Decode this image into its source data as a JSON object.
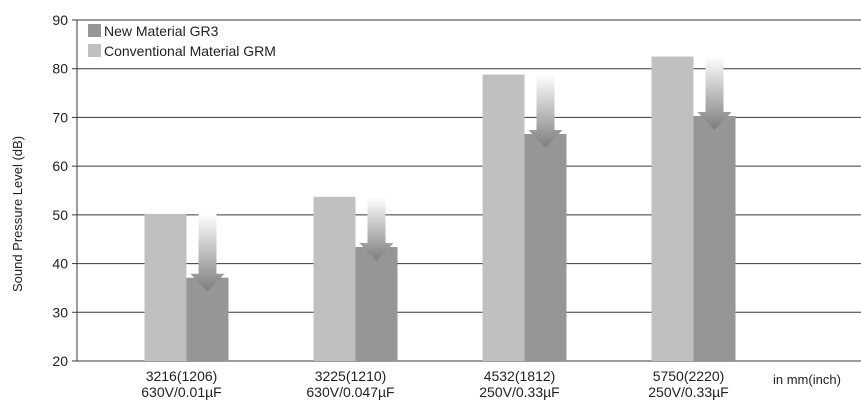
{
  "chart_data": {
    "type": "bar",
    "categories": [
      [
        "3216(1206)",
        "630V/0.01µF"
      ],
      [
        "3225(1210)",
        "630V/0.047µF"
      ],
      [
        "4532(1812)",
        "250V/0.33µF"
      ],
      [
        "5750(2220)",
        "250V/0.33µF"
      ]
    ],
    "series": [
      {
        "name": "Conventional Material GRM",
        "color": "#c0c0c0",
        "values": [
          50.2,
          53.7,
          78.8,
          82.5
        ]
      },
      {
        "name": "New Material GR3",
        "color": "#969696",
        "values": [
          37.1,
          43.4,
          66.6,
          70.3
        ]
      }
    ],
    "legend_order": [
      "New Material GR3",
      "Conventional Material GRM"
    ],
    "legend_position": "top-left",
    "ylabel": "Sound Pressure Level (dB)",
    "xunit_note": "in mm(inch)",
    "ylim": [
      20,
      90
    ],
    "yticks": [
      20,
      30,
      40,
      50,
      60,
      70,
      80,
      90
    ],
    "grid": "horizontal",
    "annotation": "downward arrow from conventional to new material level"
  }
}
